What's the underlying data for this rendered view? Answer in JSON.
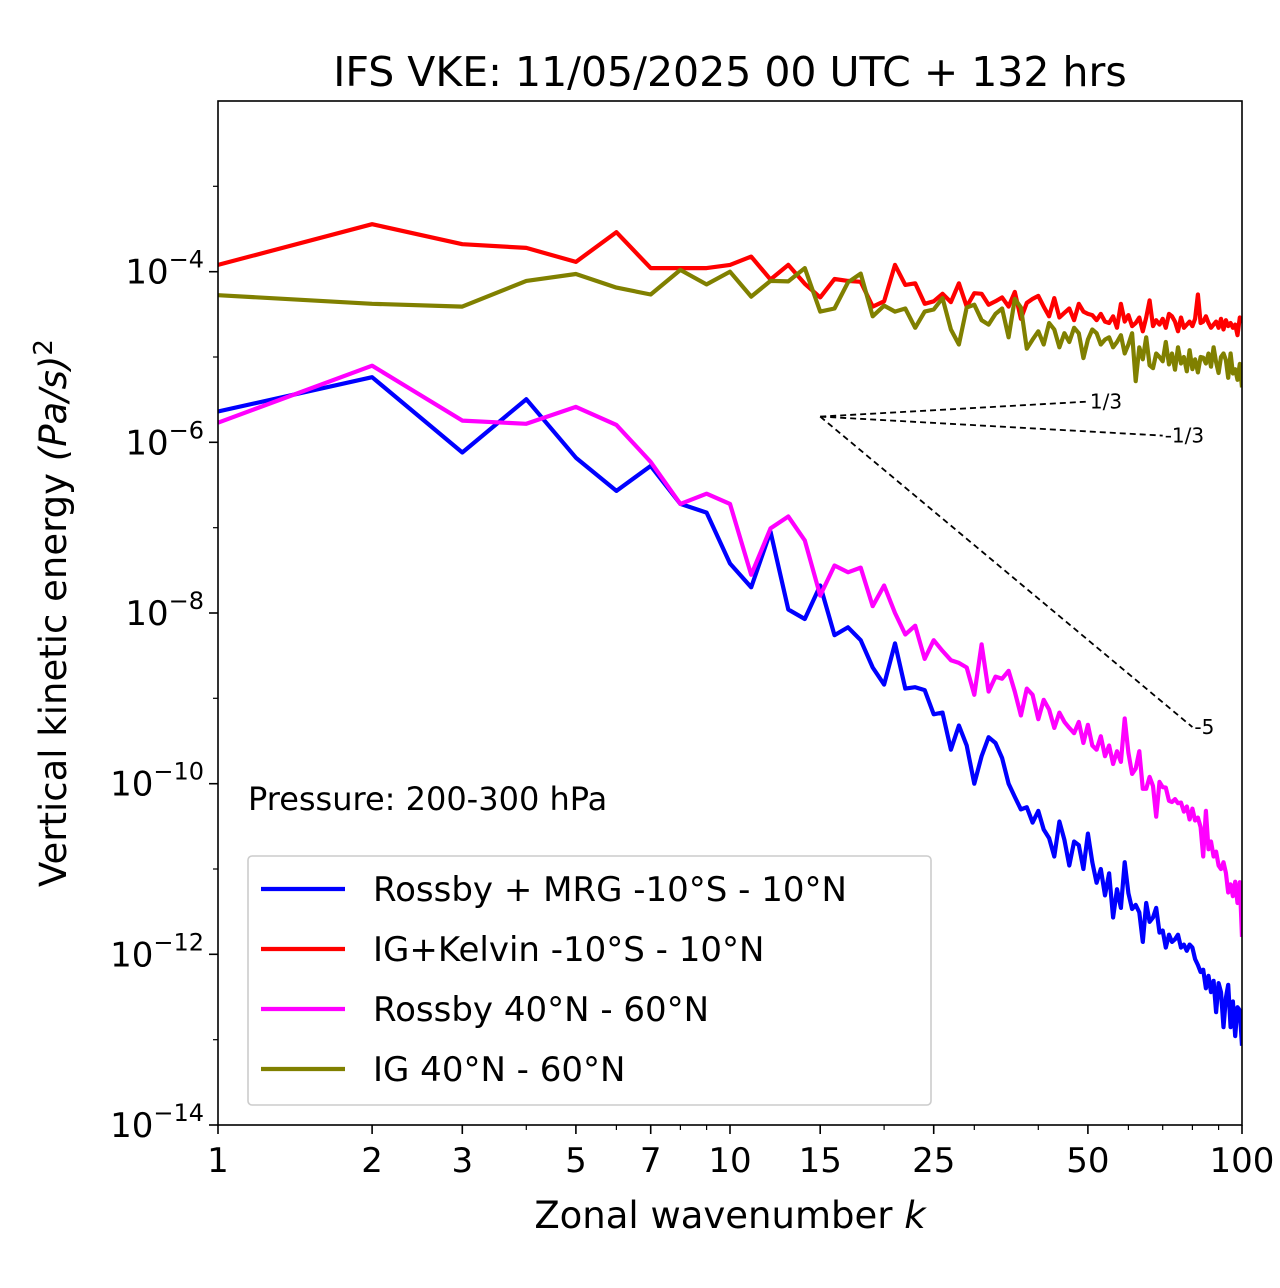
{
  "chart_data": {
    "type": "line",
    "title": "IFS VKE: 11/05/2025 00 UTC + 132 hrs",
    "xlabel": "Zonal wavenumber",
    "xlabel_var": "k",
    "ylabel": "Vertical kinetic energy",
    "ylabel_units": "(Pa/s)",
    "ylabel_exponent": "2",
    "xscale": "log",
    "yscale": "log",
    "xlim": [
      1,
      100
    ],
    "ylim": [
      1e-14,
      0.01
    ],
    "x_ticks": [
      1,
      2,
      3,
      5,
      7,
      10,
      15,
      25,
      50,
      100
    ],
    "x_tick_labels": [
      "1",
      "2",
      "3",
      "5",
      "7",
      "10",
      "15",
      "25",
      "50",
      "100"
    ],
    "y_ticks": [
      1e-14,
      1e-12,
      1e-10,
      1e-08,
      1e-06,
      0.0001
    ],
    "y_tick_labels": [
      {
        "base": "10",
        "exp": "−14"
      },
      {
        "base": "10",
        "exp": "−12"
      },
      {
        "base": "10",
        "exp": "−10"
      },
      {
        "base": "10",
        "exp": "−8"
      },
      {
        "base": "10",
        "exp": "−6"
      },
      {
        "base": "10",
        "exp": "−4"
      }
    ],
    "grid": false,
    "legend_position": "lower-left",
    "annotation": "Pressure: 200-300 hPa",
    "reference_slopes": {
      "origin": [
        15,
        2e-06
      ],
      "lines": [
        {
          "label": "1/3",
          "end": [
            50,
            3e-06
          ]
        },
        {
          "label": "-1/3",
          "end": [
            70,
            1.2e-06
          ]
        },
        {
          "label": "-5",
          "end": [
            80,
            4.6e-10
          ]
        }
      ]
    },
    "series": [
      {
        "name": "Rossby + MRG -10°S - 10°N",
        "color": "#0000ff",
        "x": [
          1,
          2,
          3,
          4,
          5,
          6,
          7,
          8,
          9,
          10,
          11,
          12,
          13,
          14,
          15,
          16,
          17,
          18,
          19,
          20,
          21,
          22,
          23,
          24,
          25,
          26,
          27,
          28,
          29,
          30,
          31,
          32,
          33,
          34,
          35,
          36,
          37,
          38,
          39,
          40,
          41,
          42,
          43,
          44,
          45,
          46,
          47,
          48,
          49,
          50,
          51,
          52,
          53,
          54,
          55,
          56,
          57,
          58,
          59,
          60,
          61,
          62,
          63,
          64,
          65,
          66,
          67,
          68,
          69,
          70,
          71,
          72,
          73,
          74,
          75,
          76,
          77,
          78,
          79,
          80,
          81,
          82,
          83,
          84,
          85,
          86,
          87,
          88,
          89,
          90,
          91,
          92,
          93,
          94,
          95,
          96,
          97,
          98,
          99,
          100
        ],
        "y": [
          2.3e-06,
          5.8e-06,
          7.6e-07,
          3.2e-06,
          6.6e-07,
          2.7e-07,
          5.3e-07,
          1.9e-07,
          1.5e-07,
          3.8e-08,
          2e-08,
          9e-08,
          1.1e-08,
          8.5e-09,
          2.1e-08,
          5.5e-09,
          6.8e-09,
          4.8e-09,
          2.3e-09,
          1.45e-09,
          4.4e-09,
          1.3e-09,
          1.35e-09,
          1.25e-09,
          6.5e-10,
          6.8e-10,
          2.5e-10,
          4.8e-10,
          2.8e-10,
          1e-10,
          2.1e-10,
          3.5e-10,
          3e-10,
          2e-10,
          1e-10,
          7e-11,
          5e-11,
          5.3e-11,
          3.5e-11,
          4.8e-11,
          2.9e-11,
          2.3e-11,
          1.4e-11,
          3.6e-11,
          2.2e-11,
          1.1e-11,
          2.1e-11,
          1.9e-11,
          1e-11,
          2.6e-11,
          1.2e-11,
          6.9e-12,
          1e-11,
          4.9e-12,
          8.9e-12,
          2.7e-12,
          5.8e-12,
          3.5e-12,
          1.2e-11,
          5.2e-12,
          3.4e-12,
          3.8e-12,
          3.1e-12,
          1.4e-12,
          4e-12,
          2.4e-12,
          2.7e-12,
          3.5e-12,
          1.8e-12,
          1.9e-12,
          1.2e-12,
          1.7e-12,
          1.4e-12,
          1.5e-12,
          1.7e-12,
          1.2e-12,
          1.3e-12,
          1.1e-12,
          1.3e-12,
          1.2e-12,
          8.8e-13,
          7.5e-13,
          6.2e-13,
          6.6e-13,
          4e-13,
          5.6e-13,
          3.6e-13,
          4.9e-13,
          2.1e-13,
          4.6e-13,
          3.6e-13,
          1.4e-13,
          3.1e-13,
          4.4e-13,
          1.4e-13,
          2.8e-13,
          1.1e-13,
          2.4e-13,
          2.2e-13,
          8.5e-14
        ]
      },
      {
        "name": "IG+Kelvin -10°S - 10°N",
        "color": "#ff0000",
        "x": [
          1,
          2,
          3,
          4,
          5,
          6,
          7,
          8,
          9,
          10,
          11,
          12,
          13,
          14,
          15,
          16,
          17,
          18,
          19,
          20,
          21,
          22,
          23,
          24,
          25,
          26,
          27,
          28,
          29,
          30,
          31,
          32,
          33,
          34,
          35,
          36,
          37,
          38,
          39,
          40,
          41,
          42,
          43,
          44,
          45,
          46,
          47,
          48,
          49,
          50,
          51,
          52,
          53,
          54,
          55,
          56,
          57,
          58,
          59,
          60,
          61,
          62,
          63,
          64,
          65,
          66,
          67,
          68,
          69,
          70,
          71,
          72,
          73,
          74,
          75,
          76,
          77,
          78,
          79,
          80,
          81,
          82,
          83,
          84,
          85,
          86,
          87,
          88,
          89,
          90,
          91,
          92,
          93,
          94,
          95,
          96,
          97,
          98,
          99,
          100
        ],
        "y": [
          0.00012,
          0.00036,
          0.00021,
          0.00019,
          0.00013,
          0.00029,
          0.00011,
          0.00011,
          0.00011,
          0.00012,
          0.00015,
          8.1e-05,
          0.00012,
          7.2e-05,
          5e-05,
          8.2e-05,
          7.8e-05,
          7.6e-05,
          3.9e-05,
          4.5e-05,
          0.00012,
          7e-05,
          7.3e-05,
          4.2e-05,
          4.5e-05,
          5.5e-05,
          4.4e-05,
          7.3e-05,
          3.9e-05,
          5.6e-05,
          5.5e-05,
          4.1e-05,
          4.5e-05,
          5e-05,
          3.9e-05,
          5.8e-05,
          2.8e-05,
          4.3e-05,
          4.8e-05,
          5.2e-05,
          3.9e-05,
          3e-05,
          4.9e-05,
          2.9e-05,
          3.3e-05,
          3.7e-05,
          2.7e-05,
          4.2e-05,
          3.4e-05,
          3.2e-05,
          3.1e-05,
          2.7e-05,
          3.2e-05,
          2.6e-05,
          2.5e-05,
          3e-05,
          2.2e-05,
          4.2e-05,
          2.6e-05,
          3.1e-05,
          2.3e-05,
          2.5e-05,
          2.9e-05,
          2e-05,
          2.9e-05,
          4.6e-05,
          2.3e-05,
          2.7e-05,
          2.4e-05,
          2.8e-05,
          2.2e-05,
          3.2e-05,
          3e-05,
          2.6e-05,
          2e-05,
          2.9e-05,
          2.2e-05,
          2.4e-05,
          2.6e-05,
          2.3e-05,
          2.8e-05,
          5.4e-05,
          2.5e-05,
          2.6e-05,
          3e-05,
          2.5e-05,
          2.2e-05,
          2.4e-05,
          2.6e-05,
          2.2e-05,
          2.8e-05,
          2.1e-05,
          2.7e-05,
          2.3e-05,
          2.5e-05,
          2.2e-05,
          2.4e-05,
          1.8e-05,
          2.9e-05,
          2.5e-05
        ]
      },
      {
        "name": "Rossby 40°N - 60°N",
        "color": "#ff00ff",
        "x": [
          1,
          2,
          3,
          4,
          5,
          6,
          7,
          8,
          9,
          10,
          11,
          12,
          13,
          14,
          15,
          16,
          17,
          18,
          19,
          20,
          21,
          22,
          23,
          24,
          25,
          26,
          27,
          28,
          29,
          30,
          31,
          32,
          33,
          34,
          35,
          36,
          37,
          38,
          39,
          40,
          41,
          42,
          43,
          44,
          45,
          46,
          47,
          48,
          49,
          50,
          51,
          52,
          53,
          54,
          55,
          56,
          57,
          58,
          59,
          60,
          61,
          62,
          63,
          64,
          65,
          66,
          67,
          68,
          69,
          70,
          71,
          72,
          73,
          74,
          75,
          76,
          77,
          78,
          79,
          80,
          81,
          82,
          83,
          84,
          85,
          86,
          87,
          88,
          89,
          90,
          91,
          92,
          93,
          94,
          95,
          96,
          97,
          98,
          99,
          100
        ],
        "y": [
          1.7e-06,
          7.9e-06,
          1.8e-06,
          1.65e-06,
          2.6e-06,
          1.6e-06,
          5.9e-07,
          1.9e-07,
          2.5e-07,
          1.9e-07,
          2.8e-08,
          9.8e-08,
          1.35e-07,
          7.1e-08,
          1.6e-08,
          3.6e-08,
          3e-08,
          3.4e-08,
          1.2e-08,
          2.1e-08,
          1e-08,
          5.6e-09,
          7.1e-09,
          2.9e-09,
          4.8e-09,
          3.6e-09,
          2.8e-09,
          2.6e-09,
          2.3e-09,
          1.1e-09,
          4.3e-09,
          1.2e-09,
          1.8e-09,
          1.7e-09,
          2.1e-09,
          1.2e-09,
          6.3e-10,
          1.3e-09,
          1.1e-09,
          5.7e-10,
          9.6e-10,
          7.4e-10,
          4.5e-10,
          6.8e-10,
          5.3e-10,
          4.5e-10,
          3.9e-10,
          5.3e-10,
          3e-10,
          4.9e-10,
          2.8e-10,
          2.5e-10,
          3.6e-10,
          2.1e-10,
          2.8e-10,
          1.7e-10,
          2.4e-10,
          1.8e-10,
          5.8e-10,
          2.3e-10,
          1.3e-10,
          1.5e-10,
          2.4e-10,
          8.7e-11,
          8.7e-11,
          1.2e-10,
          9.4e-11,
          4.1e-11,
          1.05e-10,
          9.1e-11,
          9e-11,
          6.3e-11,
          6.1e-11,
          6.6e-11,
          5.9e-11,
          6e-11,
          4.7e-11,
          5.4e-11,
          3.8e-11,
          5.1e-11,
          3.7e-11,
          4e-11,
          3.1e-11,
          1.4e-11,
          4.8e-11,
          1.7e-11,
          2.1e-11,
          1.4e-11,
          1.6e-11,
          1.1e-11,
          1e-11,
          1.2e-11,
          9e-12,
          5.3e-12,
          6.6e-12,
          4.8e-12,
          7.1e-12,
          4e-12,
          7e-12,
          1.6e-12
        ]
      },
      {
        "name": "IG 40°N - 60°N",
        "color": "#808000",
        "x": [
          1,
          2,
          3,
          4,
          5,
          6,
          7,
          8,
          9,
          10,
          11,
          12,
          13,
          14,
          15,
          16,
          17,
          18,
          19,
          20,
          21,
          22,
          23,
          24,
          25,
          26,
          27,
          28,
          29,
          30,
          31,
          32,
          33,
          34,
          35,
          36,
          37,
          38,
          39,
          40,
          41,
          42,
          43,
          44,
          45,
          46,
          47,
          48,
          49,
          50,
          51,
          52,
          53,
          54,
          55,
          56,
          57,
          58,
          59,
          60,
          61,
          62,
          63,
          64,
          65,
          66,
          67,
          68,
          69,
          70,
          71,
          72,
          73,
          74,
          75,
          76,
          77,
          78,
          79,
          80,
          81,
          82,
          83,
          84,
          85,
          86,
          87,
          88,
          89,
          90,
          91,
          92,
          93,
          94,
          95,
          96,
          97,
          98,
          99,
          100
        ],
        "y": [
          5.3e-05,
          4.2e-05,
          3.9e-05,
          7.8e-05,
          9.4e-05,
          6.5e-05,
          5.4e-05,
          0.000105,
          7.1e-05,
          0.0001,
          5.1e-05,
          7.8e-05,
          7.7e-05,
          0.00011,
          3.4e-05,
          3.7e-05,
          7.5e-05,
          9.5e-05,
          3e-05,
          4e-05,
          3.4e-05,
          3.7e-05,
          2.2e-05,
          3.4e-05,
          3.6e-05,
          4.9e-05,
          2.1e-05,
          1.4e-05,
          3.8e-05,
          4.1e-05,
          2.7e-05,
          2.4e-05,
          3.2e-05,
          3.7e-05,
          1.7e-05,
          4.8e-05,
          3.8e-05,
          1.25e-05,
          1.6e-05,
          2e-05,
          1.4e-05,
          2.5e-05,
          2.1e-05,
          1.3e-05,
          1.9e-05,
          1.5e-05,
          2.2e-05,
          1.9e-05,
          9.7e-06,
          1.6e-05,
          2.1e-05,
          1.9e-05,
          1.4e-05,
          1.6e-05,
          1.7e-05,
          1.3e-05,
          1.5e-05,
          1.8e-05,
          1.1e-05,
          1.4e-05,
          1.9e-05,
          5.2e-06,
          1.3e-05,
          9.4e-06,
          1.7e-05,
          8e-06,
          7.4e-06,
          1.1e-05,
          1e-05,
          8.9e-06,
          1.5e-05,
          8.2e-06,
          1.1e-05,
          7.1e-06,
          1.3e-05,
          8.4e-06,
          1e-05,
          6.8e-06,
          1.2e-05,
          7.2e-06,
          9.4e-06,
          6.6e-06,
          1e-05,
          9.8e-06,
          8.4e-06,
          1.1e-05,
          7.7e-06,
          1.3e-05,
          8.7e-06,
          6.5e-06,
          1e-05,
          1.1e-05,
          9.2e-06,
          5.7e-06,
          1.1e-05,
          6.4e-06,
          7.2e-06,
          5.4e-06,
          8.3e-06,
          4.4e-06
        ]
      }
    ]
  }
}
